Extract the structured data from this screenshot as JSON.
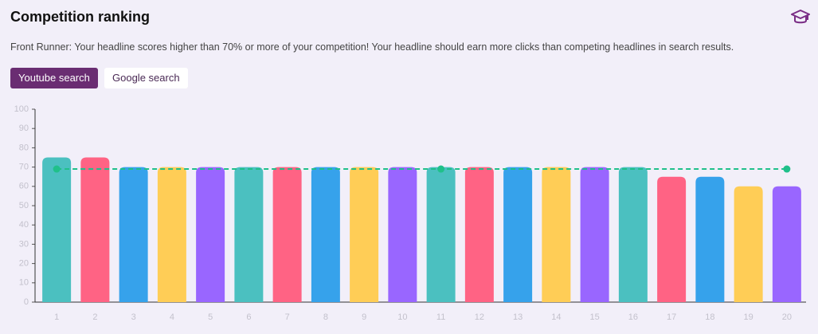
{
  "header": {
    "title": "Competition ranking",
    "description": "Front Runner: Your headline scores higher than 70% or more of your competition! Your headline should earn more clicks than competing headlines in search results."
  },
  "tabs": [
    "Youtube search",
    "Google search"
  ],
  "chart_data": {
    "type": "bar",
    "categories": [
      "1",
      "2",
      "3",
      "4",
      "5",
      "6",
      "7",
      "8",
      "9",
      "10",
      "11",
      "12",
      "13",
      "14",
      "15",
      "16",
      "17",
      "18",
      "19",
      "20"
    ],
    "values": [
      75,
      75,
      70,
      70,
      70,
      70,
      70,
      70,
      70,
      70,
      70,
      70,
      70,
      70,
      70,
      70,
      65,
      65,
      60,
      60
    ],
    "colors": [
      "#4bc0c0",
      "#ff6384",
      "#36a2eb",
      "#ffcd56",
      "#9966ff",
      "#4bc0c0",
      "#ff6384",
      "#36a2eb",
      "#ffcd56",
      "#9966ff",
      "#4bc0c0",
      "#ff6384",
      "#36a2eb",
      "#ffcd56",
      "#9966ff",
      "#4bc0c0",
      "#ff6384",
      "#36a2eb",
      "#ffcd56",
      "#9966ff"
    ],
    "ylim": [
      0,
      100
    ],
    "yticks": [
      0,
      10,
      20,
      30,
      40,
      50,
      60,
      70,
      80,
      90,
      100
    ],
    "grid": false,
    "reference_line": {
      "value": 69,
      "color": "#20c08a",
      "markers_at": [
        "1",
        "11",
        "20"
      ]
    }
  }
}
